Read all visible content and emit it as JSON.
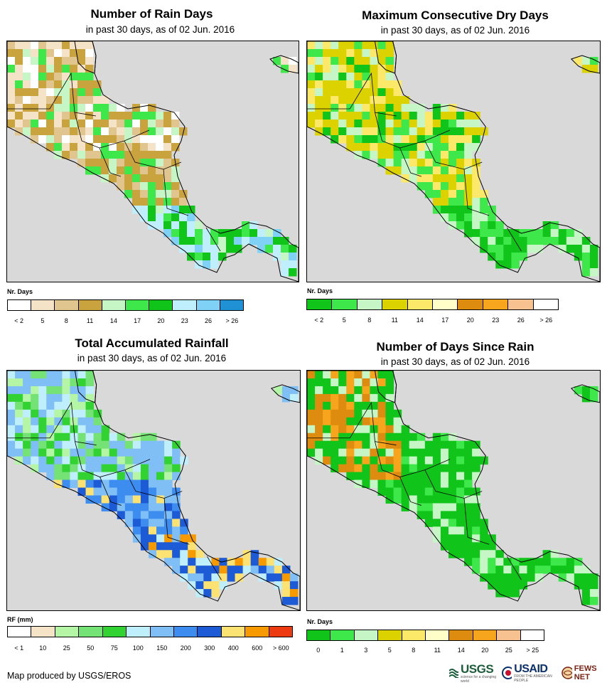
{
  "panels": [
    {
      "id": "rain-days",
      "title": "Number of Rain Days",
      "subtitle": "in past 30 days, as of 02 Jun. 2016",
      "legend": {
        "title": "Nr. Days",
        "colors": [
          "#ffffff",
          "#f5e3c7",
          "#e1c58f",
          "#c9a33e",
          "#c6f5c6",
          "#3ee84a",
          "#10c41a",
          "#bfeefc",
          "#7fd2f6",
          "#2191d6"
        ],
        "labels": [
          "< 2",
          "5",
          "8",
          "11",
          "14",
          "17",
          "20",
          "23",
          "26",
          "> 26"
        ]
      }
    },
    {
      "id": "dry-days",
      "title": "Maximum Consecutive Dry Days",
      "subtitle": "in past 30 days, as of 02 Jun. 2016",
      "legend": {
        "title": "Nr. Days",
        "colors": [
          "#10c41a",
          "#3ee84a",
          "#c6f5c6",
          "#dcd200",
          "#fce96a",
          "#fffdc8",
          "#de8c0f",
          "#f6a51c",
          "#f8c190",
          "#ffffff"
        ],
        "labels": [
          "< 2",
          "5",
          "8",
          "11",
          "14",
          "17",
          "20",
          "23",
          "26",
          "> 26"
        ]
      }
    },
    {
      "id": "rainfall",
      "title": "Total Accumulated Rainfall",
      "subtitle": "in past 30 days, as of 02 Jun. 2016",
      "legend": {
        "title": "RF (mm)",
        "colors": [
          "#ffffff",
          "#f5e3c7",
          "#b5f5a6",
          "#75e275",
          "#33d233",
          "#bfeefc",
          "#7fbff5",
          "#3d8cf0",
          "#1c5ad6",
          "#fce173",
          "#f69a00",
          "#ee3a10"
        ],
        "labels": [
          "< 1",
          "10",
          "25",
          "50",
          "75",
          "100",
          "150",
          "200",
          "300",
          "400",
          "600",
          "> 600"
        ]
      }
    },
    {
      "id": "days-since-rain",
      "title": "Number of Days Since Rain",
      "subtitle": "in past 30 days, as of 02 Jun. 2016",
      "legend": {
        "title": "Nr. Days",
        "colors": [
          "#10c41a",
          "#3ee84a",
          "#c6f5c6",
          "#dcd200",
          "#fce96a",
          "#fffdc8",
          "#de8c0f",
          "#f6a51c",
          "#f8c190",
          "#ffffff"
        ],
        "labels": [
          "0",
          "1",
          "3",
          "5",
          "8",
          "11",
          "14",
          "20",
          "25",
          "> 25"
        ]
      }
    }
  ],
  "footer": {
    "credit": "Map produced by USGS/EROS"
  },
  "logos": {
    "usgs": "USGS",
    "usgs_tag": "science for a changing world",
    "usaid": "USAID",
    "usaid_tag": "FROM THE AMERICAN PEOPLE",
    "fews": "FEWS NET"
  }
}
